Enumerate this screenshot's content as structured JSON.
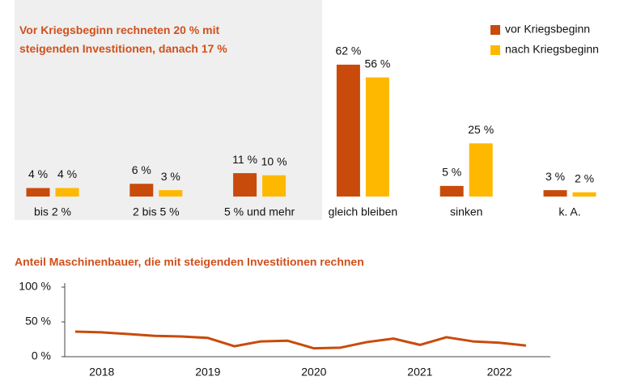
{
  "chart_data": [
    {
      "type": "bar",
      "annotation": "Vor Kriegsbeginn rechneten 20 % mit steigenden Investitionen, danach 17 %",
      "categories": [
        "bis 2 %",
        "2 bis 5 %",
        "5 % und mehr",
        "gleich bleiben",
        "sinken",
        "k. A."
      ],
      "series": [
        {
          "name": "vor Kriegsbeginn",
          "color": "#c84b0c",
          "values": [
            4,
            6,
            11,
            62,
            5,
            3
          ],
          "value_labels": [
            "4 %",
            "6 %",
            "11 %",
            "62 %",
            "5 %",
            "3 %"
          ]
        },
        {
          "name": "nach Kriegsbeginn",
          "color": "#ffb800",
          "values": [
            4,
            3,
            10,
            56,
            25,
            2
          ],
          "value_labels": [
            "4 %",
            "3 %",
            "10 %",
            "56 %",
            "25 %",
            "2 %"
          ]
        }
      ],
      "legend": "upper right"
    },
    {
      "type": "line",
      "title": "Anteil Maschinenbauer, die mit steigenden Investitionen rechnen",
      "categories": [
        null,
        "2018",
        null,
        null,
        null,
        "2019",
        null,
        null,
        null,
        "2020",
        null,
        null,
        null,
        "2021",
        null,
        null,
        "2022",
        null
      ],
      "series": [
        {
          "color": "#c84b0c",
          "values": [
            36,
            35,
            32.5,
            30,
            29,
            27,
            15,
            22,
            23,
            12,
            13,
            21,
            26,
            17,
            28,
            22,
            20,
            16
          ]
        }
      ],
      "ylim": [
        0,
        100
      ],
      "yticks": [
        {
          "value": 0,
          "label": "0 %"
        },
        {
          "value": 50,
          "label": "50 %"
        },
        {
          "value": 100,
          "label": "100 %"
        }
      ]
    }
  ]
}
